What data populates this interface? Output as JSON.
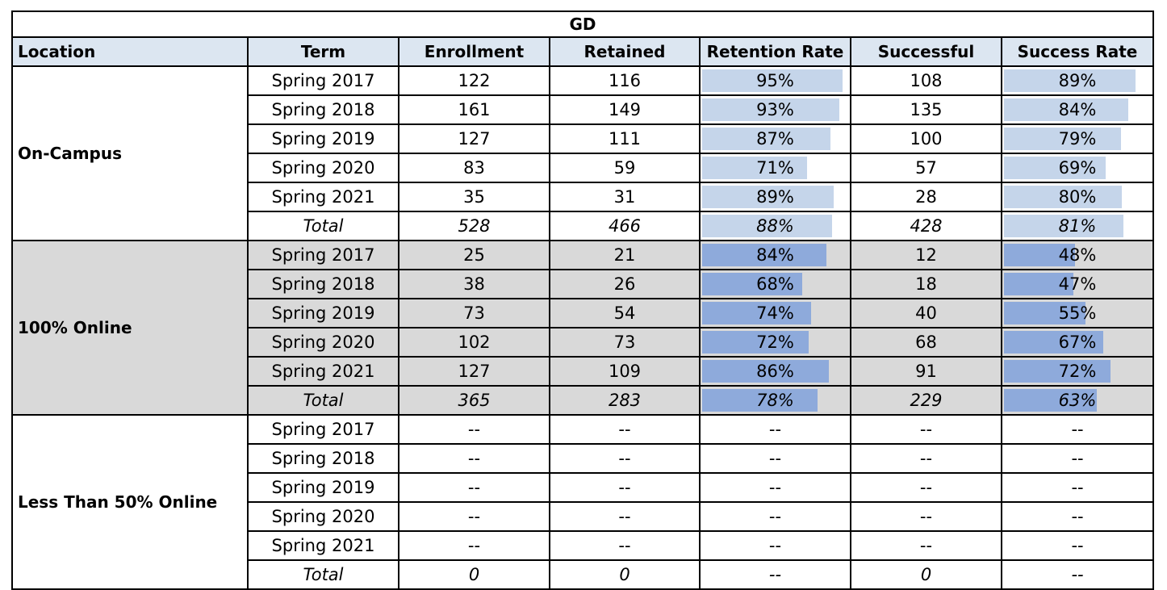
{
  "chart_data": {
    "type": "table",
    "title": "GD",
    "columns": [
      "Location",
      "Term",
      "Enrollment",
      "Retained",
      "Retention Rate",
      "Successful",
      "Success Rate"
    ],
    "bar_columns": [
      "Retention Rate",
      "Success Rate"
    ],
    "colors": {
      "header_bg": "#dce6f1",
      "group_shading": "#d9d9d9",
      "bar_light": "#c5d5ea",
      "bar_dark": "#8eaadb"
    },
    "groups": [
      {
        "location": "On-Campus",
        "rows": [
          {
            "term": "Spring 2017",
            "enrollment": "122",
            "retained": "116",
            "retention_rate": "95%",
            "retention_rate_value": 95,
            "successful": "108",
            "success_rate": "89%",
            "success_rate_value": 89
          },
          {
            "term": "Spring 2018",
            "enrollment": "161",
            "retained": "149",
            "retention_rate": "93%",
            "retention_rate_value": 93,
            "successful": "135",
            "success_rate": "84%",
            "success_rate_value": 84
          },
          {
            "term": "Spring 2019",
            "enrollment": "127",
            "retained": "111",
            "retention_rate": "87%",
            "retention_rate_value": 87,
            "successful": "100",
            "success_rate": "79%",
            "success_rate_value": 79
          },
          {
            "term": "Spring 2020",
            "enrollment": "83",
            "retained": "59",
            "retention_rate": "71%",
            "retention_rate_value": 71,
            "successful": "57",
            "success_rate": "69%",
            "success_rate_value": 69
          },
          {
            "term": "Spring 2021",
            "enrollment": "35",
            "retained": "31",
            "retention_rate": "89%",
            "retention_rate_value": 89,
            "successful": "28",
            "success_rate": "80%",
            "success_rate_value": 80
          },
          {
            "term": "Total",
            "total": true,
            "enrollment": "528",
            "retained": "466",
            "retention_rate": "88%",
            "retention_rate_value": 88,
            "successful": "428",
            "success_rate": "81%",
            "success_rate_value": 81
          }
        ]
      },
      {
        "location": "100% Online",
        "rows": [
          {
            "term": "Spring 2017",
            "enrollment": "25",
            "retained": "21",
            "retention_rate": "84%",
            "retention_rate_value": 84,
            "successful": "12",
            "success_rate": "48%",
            "success_rate_value": 48
          },
          {
            "term": "Spring 2018",
            "enrollment": "38",
            "retained": "26",
            "retention_rate": "68%",
            "retention_rate_value": 68,
            "successful": "18",
            "success_rate": "47%",
            "success_rate_value": 47
          },
          {
            "term": "Spring 2019",
            "enrollment": "73",
            "retained": "54",
            "retention_rate": "74%",
            "retention_rate_value": 74,
            "successful": "40",
            "success_rate": "55%",
            "success_rate_value": 55
          },
          {
            "term": "Spring 2020",
            "enrollment": "102",
            "retained": "73",
            "retention_rate": "72%",
            "retention_rate_value": 72,
            "successful": "68",
            "success_rate": "67%",
            "success_rate_value": 67
          },
          {
            "term": "Spring 2021",
            "enrollment": "127",
            "retained": "109",
            "retention_rate": "86%",
            "retention_rate_value": 86,
            "successful": "91",
            "success_rate": "72%",
            "success_rate_value": 72
          },
          {
            "term": "Total",
            "total": true,
            "enrollment": "365",
            "retained": "283",
            "retention_rate": "78%",
            "retention_rate_value": 78,
            "successful": "229",
            "success_rate": "63%",
            "success_rate_value": 63
          }
        ]
      },
      {
        "location": "Less Than 50% Online",
        "rows": [
          {
            "term": "Spring 2017",
            "enrollment": "--",
            "retained": "--",
            "retention_rate": "--",
            "successful": "--",
            "success_rate": "--"
          },
          {
            "term": "Spring 2018",
            "enrollment": "--",
            "retained": "--",
            "retention_rate": "--",
            "successful": "--",
            "success_rate": "--"
          },
          {
            "term": "Spring 2019",
            "enrollment": "--",
            "retained": "--",
            "retention_rate": "--",
            "successful": "--",
            "success_rate": "--"
          },
          {
            "term": "Spring 2020",
            "enrollment": "--",
            "retained": "--",
            "retention_rate": "--",
            "successful": "--",
            "success_rate": "--"
          },
          {
            "term": "Spring 2021",
            "enrollment": "--",
            "retained": "--",
            "retention_rate": "--",
            "successful": "--",
            "success_rate": "--"
          },
          {
            "term": "Total",
            "total": true,
            "enrollment": "0",
            "retained": "0",
            "retention_rate": "--",
            "successful": "0",
            "success_rate": "--"
          }
        ]
      }
    ]
  }
}
